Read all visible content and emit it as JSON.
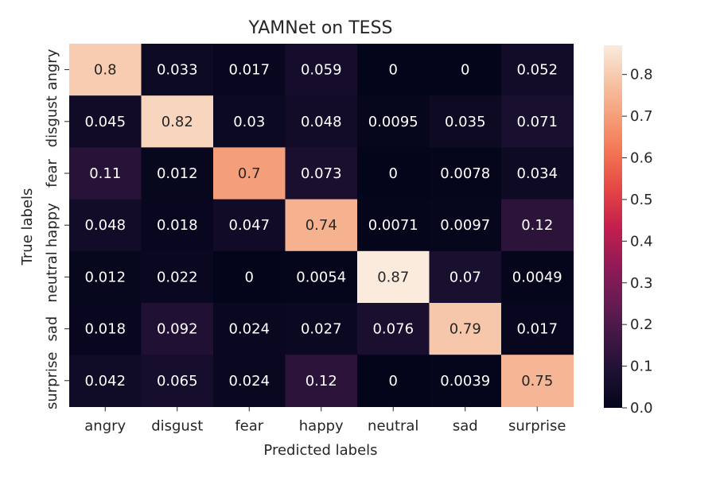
{
  "chart_data": {
    "type": "heatmap",
    "title": "YAMNet on TESS",
    "xlabel": "Predicted labels",
    "ylabel": "True labels",
    "x_categories": [
      "angry",
      "disgust",
      "fear",
      "happy",
      "neutral",
      "sad",
      "surprise"
    ],
    "y_categories": [
      "angry",
      "disgust",
      "fear",
      "happy",
      "neutral",
      "sad",
      "surprise"
    ],
    "values": [
      [
        0.8,
        0.033,
        0.017,
        0.059,
        0,
        0,
        0.052
      ],
      [
        0.045,
        0.82,
        0.03,
        0.048,
        0.0095,
        0.035,
        0.071
      ],
      [
        0.11,
        0.012,
        0.7,
        0.073,
        0,
        0.0078,
        0.034
      ],
      [
        0.048,
        0.018,
        0.047,
        0.74,
        0.0071,
        0.0097,
        0.12
      ],
      [
        0.012,
        0.022,
        0,
        0.0054,
        0.87,
        0.07,
        0.0049
      ],
      [
        0.018,
        0.092,
        0.024,
        0.027,
        0.076,
        0.79,
        0.017
      ],
      [
        0.042,
        0.065,
        0.024,
        0.12,
        0,
        0.0039,
        0.75
      ]
    ],
    "colorbar": {
      "range": [
        0,
        0.87
      ],
      "ticks": [
        "0.0",
        "0.1",
        "0.2",
        "0.3",
        "0.4",
        "0.5",
        "0.6",
        "0.7",
        "0.8"
      ]
    },
    "colormap": "rocket"
  }
}
